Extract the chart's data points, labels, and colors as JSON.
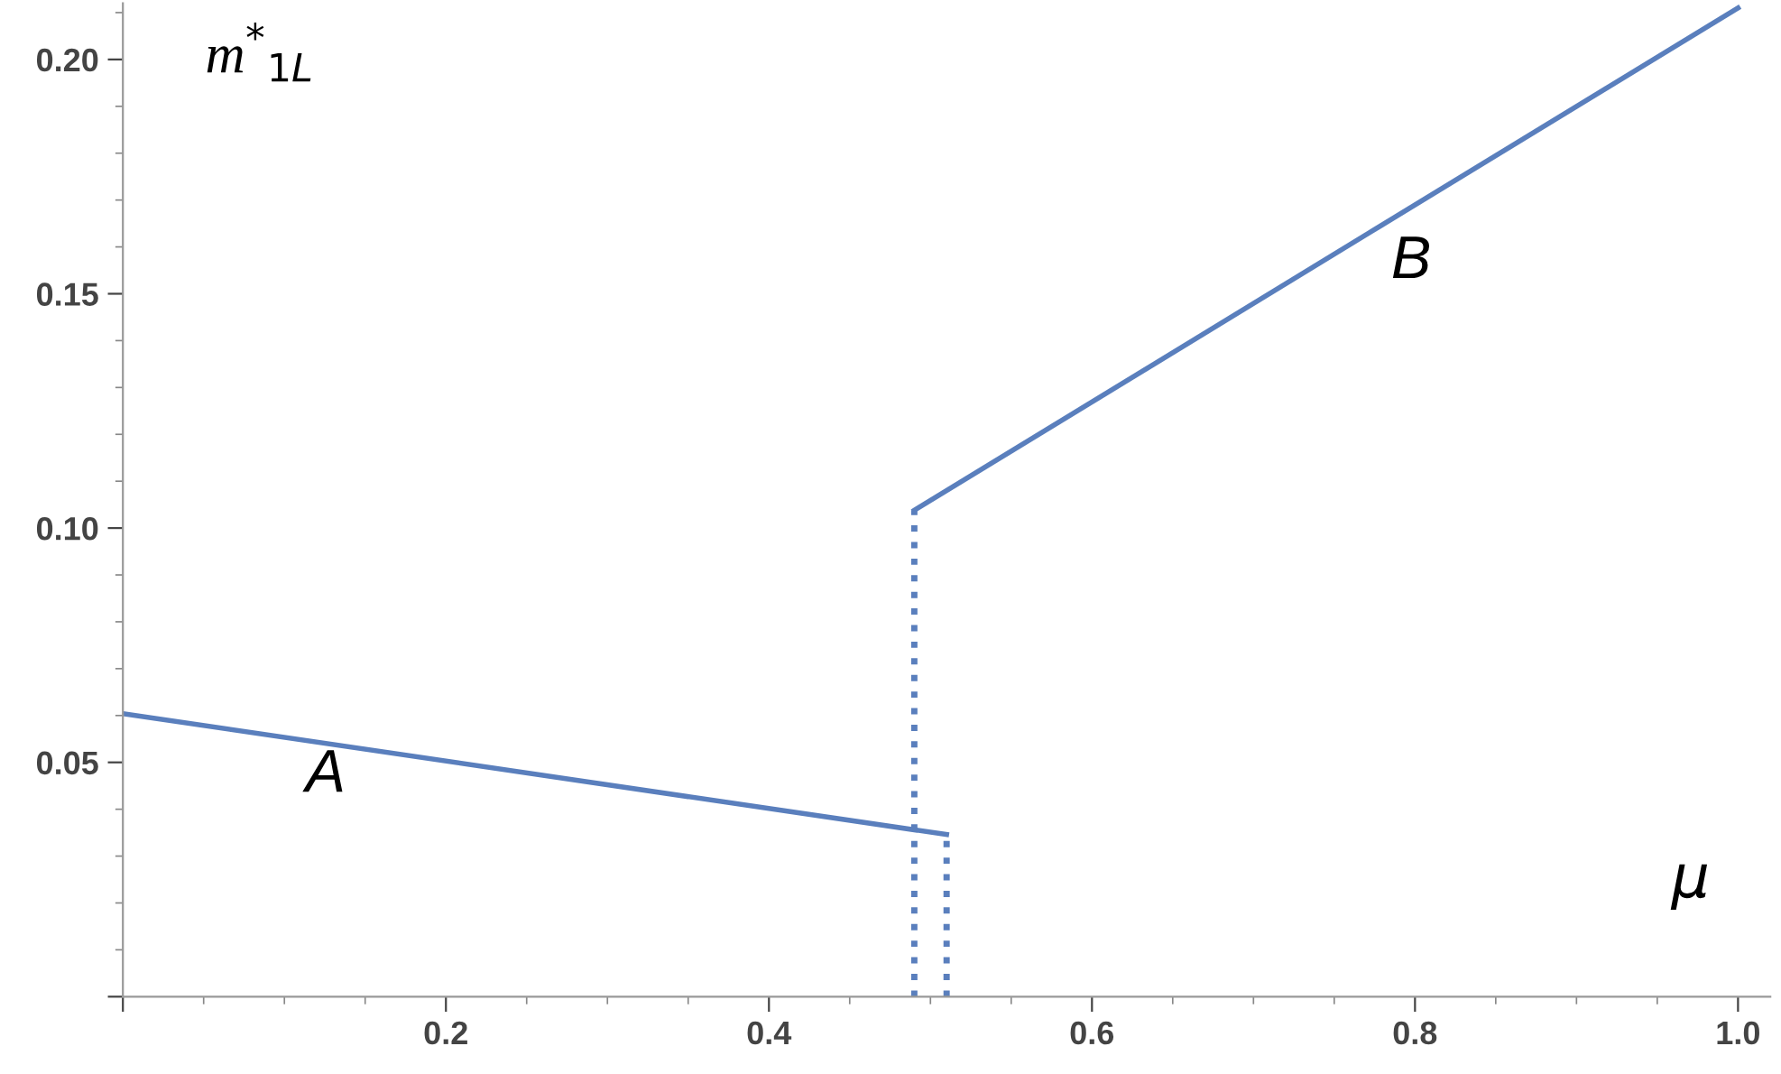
{
  "chart_data": {
    "type": "line",
    "xlabel": "μ",
    "ylabel": "m$^{*}$$_{1L}$",
    "series": [
      {
        "color": "#5a7fbd",
        "x": [
          0,
          0.51
        ],
        "values": [
          0.0604,
          0.0346
        ],
        "line_style": "solid"
      },
      {
        "color": "#5a7fbd",
        "x": [
          0.49,
          0.49
        ],
        "values": [
          0,
          0.1038
        ],
        "line_style": "dotted"
      },
      {
        "color": "#5a7fbd",
        "x": [
          0.51,
          0.51
        ],
        "values": [
          0,
          0.0346
        ],
        "line_style": "dotted"
      },
      {
        "color": "#5a7fbd",
        "x": [
          0.49,
          1.0
        ],
        "values": [
          0.1038,
          0.211
        ],
        "line_style": "solid"
      }
    ],
    "annotations": [
      "A",
      "B"
    ],
    "xlim": [
      0,
      1.02
    ],
    "ylim": [
      0,
      0.212
    ],
    "xticks": [
      {
        "value": 0,
        "label": null
      },
      0.2,
      0.4,
      0.6,
      0.8,
      {
        "value": 1.0,
        "label": "1.0"
      }
    ],
    "yticks": [
      {
        "value": 0,
        "label": null
      },
      0.05,
      {
        "value": 0.1,
        "label": "0.10"
      },
      0.15,
      {
        "value": 0.2,
        "label": "0.20"
      }
    ],
    "grid": false,
    "legend": false
  }
}
